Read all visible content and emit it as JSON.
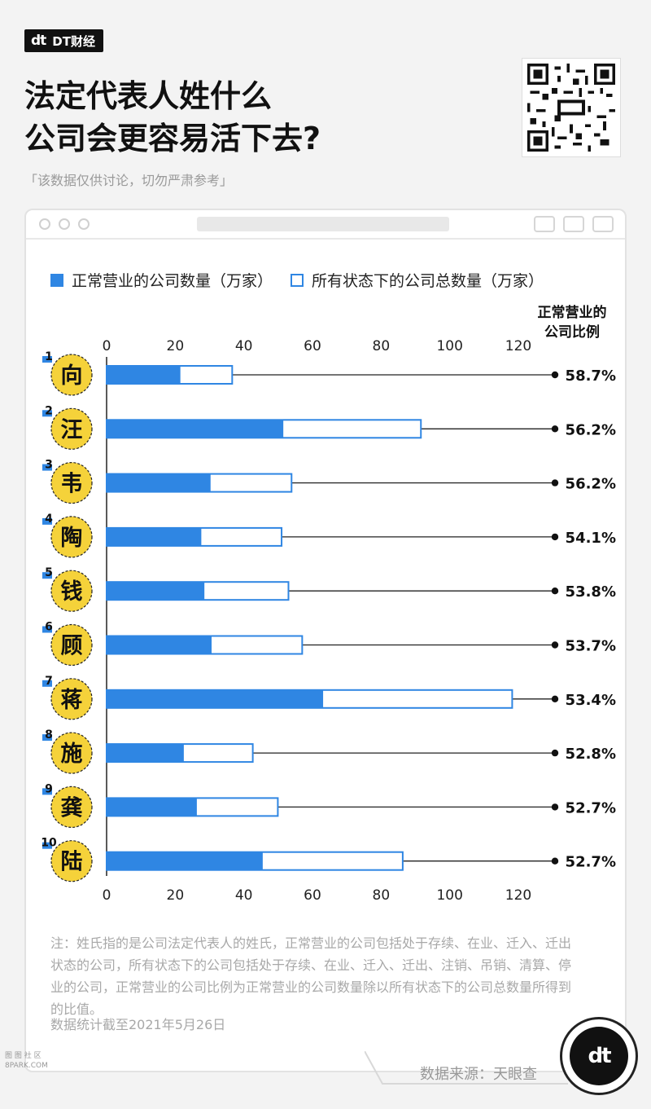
{
  "brand": {
    "mark": "dt",
    "name": "DT财经"
  },
  "title_lines": [
    "法定代表人姓什么",
    "公司会更容易活下去?"
  ],
  "disclaimer": "「该数据仅供讨论，切勿严肃参考」",
  "ratio_header_lines": [
    "正常营业的",
    "公司比例"
  ],
  "note": "注：姓氏指的是公司法定代表人的姓氏，正常营业的公司包括处于存续、在业、迁入、迁出状态的公司，所有状态下的公司包括处于存续、在业、迁入、迁出、注销、吊销、清算、停业的公司，正常营业的公司比例为正常营业的公司数量除以所有状态下的公司总数量所得到的比值。",
  "note_date": "数据统计截至2021年5月26日",
  "source": "数据来源：天眼查",
  "badge_mark": "dt",
  "corner_mark_lines": [
    "图 图 社 区",
    "8PARK.COM"
  ],
  "colors": {
    "accent": "#2f86e3",
    "circle": "#f5d23a",
    "text": "#111111"
  },
  "chart_data": {
    "type": "bar",
    "orientation": "horizontal",
    "xlim": [
      0,
      120
    ],
    "ticks": [
      0,
      20,
      40,
      60,
      80,
      100,
      120
    ],
    "series": [
      {
        "name": "正常营业的公司数量（万家）",
        "values": [
          21.5,
          51.5,
          30.3,
          27.6,
          28.5,
          30.6,
          63.1,
          22.5,
          26.3,
          45.5
        ]
      },
      {
        "name": "所有状态下的公司总数量（万家）",
        "values": [
          36.6,
          91.6,
          53.9,
          51.0,
          53.0,
          57.0,
          118.2,
          42.6,
          49.9,
          86.3
        ]
      }
    ],
    "categories": [
      "向",
      "汪",
      "韦",
      "陶",
      "钱",
      "顾",
      "蒋",
      "施",
      "龚",
      "陆"
    ],
    "ranks": [
      "1",
      "2",
      "3",
      "4",
      "5",
      "6",
      "7",
      "8",
      "9",
      "10"
    ],
    "ratios": [
      "58.7%",
      "56.2%",
      "56.2%",
      "54.1%",
      "53.8%",
      "53.7%",
      "53.4%",
      "52.8%",
      "52.7%",
      "52.7%"
    ]
  }
}
